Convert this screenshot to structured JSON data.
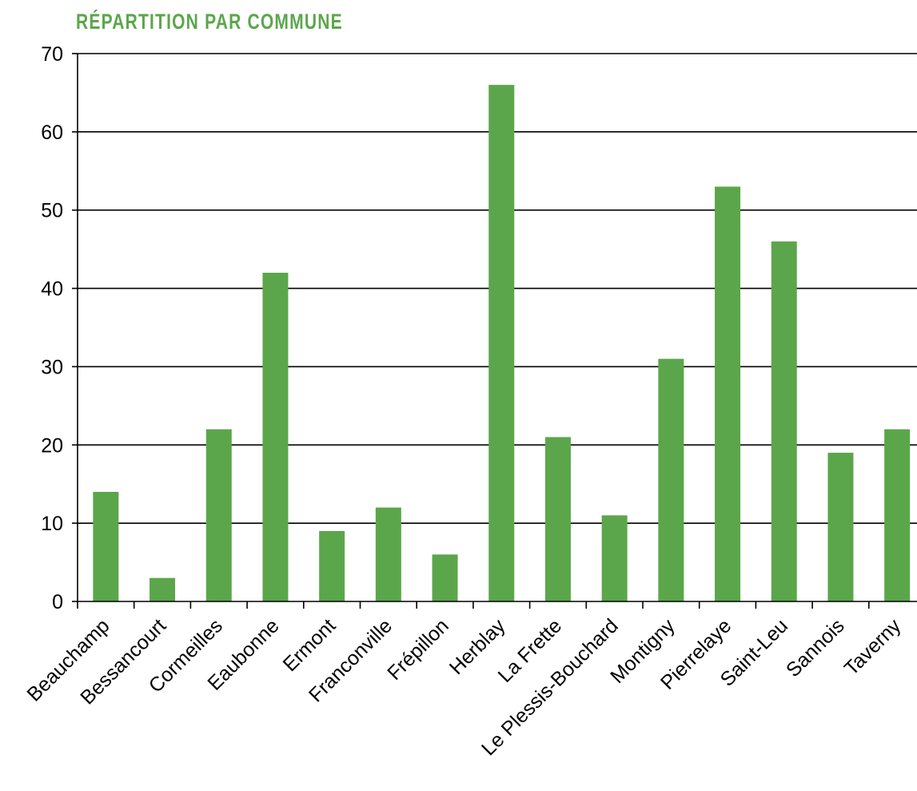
{
  "title": "RÉPARTITION PAR COMMUNE",
  "colors": {
    "title": "#5ba64b",
    "bar": "#5ba64b",
    "grid": "#000000",
    "axis": "#000000",
    "text": "#000000"
  },
  "chart_data": {
    "type": "bar",
    "title": "RÉPARTITION PAR COMMUNE",
    "xlabel": "",
    "ylabel": "",
    "ylim": [
      0,
      70
    ],
    "yticks": [
      0,
      10,
      20,
      30,
      40,
      50,
      60,
      70
    ],
    "grid": true,
    "legend": "none",
    "categories": [
      "Beauchamp",
      "Bessancourt",
      "Cormeilles",
      "Eaubonne",
      "Ermont",
      "Franconville",
      "Frépillon",
      "Herblay",
      "La Frette",
      "Le Plessis-Bouchard",
      "Montigny",
      "Pierrelaye",
      "Saint-Leu",
      "Sannois",
      "Taverny"
    ],
    "values": [
      14,
      3,
      22,
      42,
      9,
      12,
      6,
      66,
      21,
      11,
      31,
      53,
      46,
      19,
      22
    ]
  }
}
